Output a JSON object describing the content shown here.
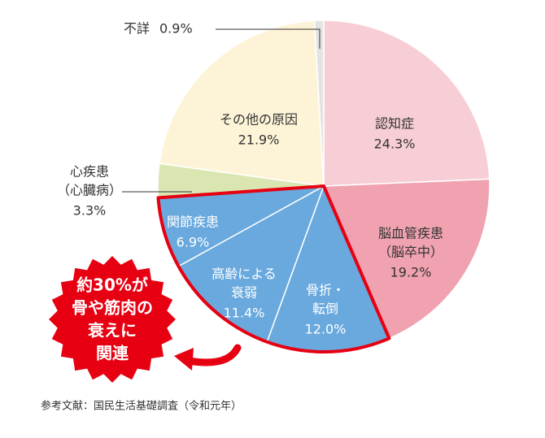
{
  "chart_data": {
    "type": "pie",
    "categories": [
      [
        "認知症"
      ],
      [
        "脳血管疾患",
        "（脳卒中）"
      ],
      [
        "骨折・",
        "転倒"
      ],
      [
        "高齢による",
        "衰弱"
      ],
      [
        "関節疾患"
      ],
      [
        "心疾患",
        "（心臓病）"
      ],
      [
        "その他の原因"
      ],
      [
        "不詳"
      ]
    ],
    "values": [
      24.3,
      19.2,
      12.0,
      11.4,
      6.9,
      3.3,
      21.9,
      0.9
    ],
    "value_labels": [
      "24.3%",
      "19.2%",
      "12.0%",
      "11.4%",
      "6.9%",
      "3.3%",
      "21.9%",
      "0.9%"
    ],
    "colors": [
      "#f7ced6",
      "#f0a2b0",
      "#69a9dd",
      "#69a9dd",
      "#69a9dd",
      "#d9e6b1",
      "#fdf3d7",
      "#e3e3e3"
    ],
    "annotation": [
      "約30%が",
      "骨や筋肉の",
      "衰えに",
      "関連"
    ],
    "source": "参考文献：国民生活基礎調査（令和元年）"
  }
}
